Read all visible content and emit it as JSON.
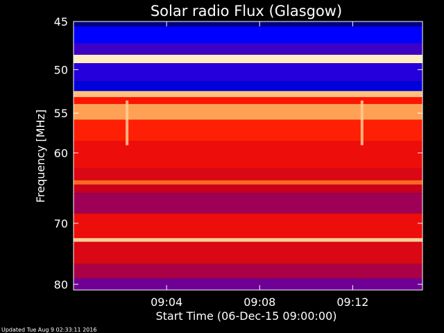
{
  "chart_data": {
    "type": "heatmap",
    "title": "Solar radio Flux (Glasgow)",
    "xlabel": "Start Time (06-Dec-15 09:00:00)",
    "ylabel": "Frequency [MHz]",
    "x_range_minutes": [
      0,
      15
    ],
    "x_ticks": [
      {
        "label": "09:04",
        "minute": 4
      },
      {
        "label": "09:08",
        "minute": 8
      },
      {
        "label": "09:12",
        "minute": 12
      }
    ],
    "y_range_mhz": [
      45,
      81
    ],
    "y_scale": "log",
    "y_ticks": [
      {
        "label": "45",
        "mhz": 45
      },
      {
        "label": "50",
        "mhz": 50
      },
      {
        "label": "55",
        "mhz": 55
      },
      {
        "label": "60",
        "mhz": 60
      },
      {
        "label": "70",
        "mhz": 70
      },
      {
        "label": "80",
        "mhz": 80
      }
    ],
    "bands": [
      {
        "from_mhz": 45.0,
        "to_mhz": 45.5,
        "level": 0.05
      },
      {
        "from_mhz": 45.5,
        "to_mhz": 47.2,
        "level": 0.12
      },
      {
        "from_mhz": 47.2,
        "to_mhz": 48.4,
        "level": 0.22
      },
      {
        "from_mhz": 48.4,
        "to_mhz": 49.3,
        "level": 0.97
      },
      {
        "from_mhz": 49.3,
        "to_mhz": 51.3,
        "level": 0.18
      },
      {
        "from_mhz": 51.3,
        "to_mhz": 52.4,
        "level": 0.1
      },
      {
        "from_mhz": 52.4,
        "to_mhz": 53.1,
        "level": 0.9
      },
      {
        "from_mhz": 53.1,
        "to_mhz": 53.9,
        "level": 0.6
      },
      {
        "from_mhz": 53.9,
        "to_mhz": 55.8,
        "level": 0.85
      },
      {
        "from_mhz": 55.8,
        "to_mhz": 58.5,
        "level": 0.62
      },
      {
        "from_mhz": 58.5,
        "to_mhz": 62.0,
        "level": 0.55
      },
      {
        "from_mhz": 62.0,
        "to_mhz": 63.7,
        "level": 0.5
      },
      {
        "from_mhz": 63.7,
        "to_mhz": 64.3,
        "level": 0.75
      },
      {
        "from_mhz": 64.3,
        "to_mhz": 65.5,
        "level": 0.45
      },
      {
        "from_mhz": 65.5,
        "to_mhz": 68.5,
        "level": 0.38
      },
      {
        "from_mhz": 68.5,
        "to_mhz": 72.3,
        "level": 0.55
      },
      {
        "from_mhz": 72.3,
        "to_mhz": 72.9,
        "level": 0.92
      },
      {
        "from_mhz": 72.9,
        "to_mhz": 76.5,
        "level": 0.5
      },
      {
        "from_mhz": 76.5,
        "to_mhz": 79.0,
        "level": 0.4
      },
      {
        "from_mhz": 79.0,
        "to_mhz": 81.0,
        "level": 0.3
      }
    ],
    "bursts": [
      {
        "minute": 2.3,
        "from_mhz": 53.5,
        "to_mhz": 59.0
      },
      {
        "minute": 12.4,
        "from_mhz": 53.5,
        "to_mhz": 59.0
      }
    ]
  },
  "footer": {
    "updated": "Updated Tue Aug  9 02:33:11 2016"
  }
}
